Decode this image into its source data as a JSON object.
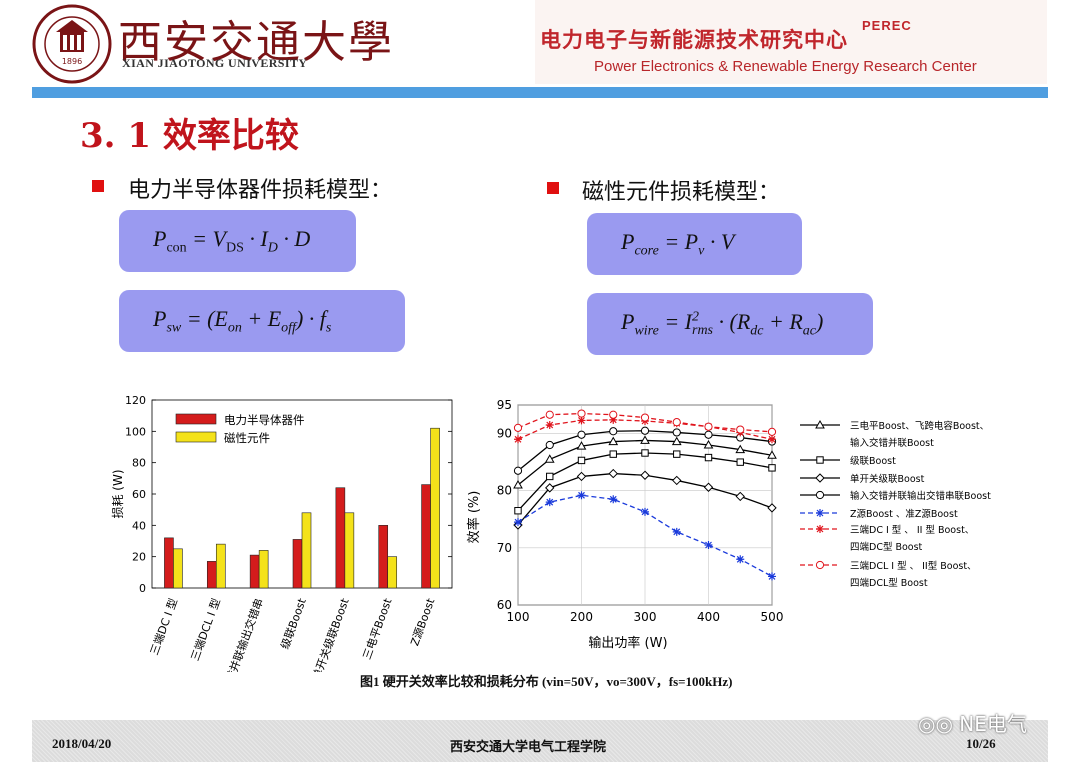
{
  "header": {
    "university_cn": "西安交通大學",
    "university_en": "XIAN JIAOTONG UNIVERSITY",
    "seal_year": "1896",
    "center_cn": "电力电子与新能源技术研究中心",
    "center_en": "Power Electronics & Renewable Energy Research Center",
    "center_logo": "PEREC"
  },
  "title": "3. 1 效率比较",
  "bullets": {
    "left": "电力半导体器件损耗模型：",
    "right": "磁性元件损耗模型："
  },
  "formulas": {
    "conduction": "P_con = V_DS · I_D · D",
    "switching": "P_sw = (E_on + E_off) · f_s",
    "core": "P_core = P_v · V",
    "winding": "P_wire = I_rms^2 · (R_dc + R_ac)"
  },
  "caption": "图1 硬开关效率比较和损耗分布 (vin=50V，vo=300V，fs=100kHz)",
  "footer": {
    "date": "2018/04/20",
    "school": "西安交通大学电气工程学院",
    "page": "10/26"
  },
  "watermark": "NE电气",
  "colors": {
    "title_red": "#c0141c",
    "formula_bg": "#9a9af0",
    "top_bar": "#4f9ee0",
    "semiconductor_bar": "#d41c1c",
    "magnetic_bar": "#f4e21a"
  },
  "chart_data": [
    {
      "type": "bar",
      "ylabel": "损耗 (W)",
      "ylim": [
        0,
        120
      ],
      "yticks": [
        0,
        20,
        40,
        60,
        80,
        100,
        120
      ],
      "categories": [
        "三端DC I 型",
        "三端DCL I 型",
        "输入交错并联输出交错串",
        "级联Boost",
        "单开关级联Boost",
        "三电平Boost",
        "Z源Boost"
      ],
      "series": [
        {
          "name": "电力半导体器件",
          "color": "#d41c1c",
          "values": [
            32,
            17,
            21,
            31,
            64,
            40,
            66
          ]
        },
        {
          "name": "磁性元件",
          "color": "#f4e21a",
          "values": [
            25,
            28,
            24,
            48,
            48,
            20,
            102
          ]
        }
      ],
      "legend": "top-left"
    },
    {
      "type": "line",
      "xlabel": "输出功率 (W)",
      "ylabel": "效率 (%)",
      "xlim": [
        100,
        500
      ],
      "ylim": [
        60,
        95
      ],
      "xticks": [
        100,
        200,
        300,
        400,
        500
      ],
      "yticks": [
        60,
        70,
        80,
        90,
        95
      ],
      "x": [
        100,
        150,
        200,
        250,
        300,
        350,
        400,
        450,
        500
      ],
      "series": [
        {
          "name": "三电平Boost、飞跨电容Boost、输入交错并联Boost",
          "legend_lines": [
            "三电平Boost、飞跨电容Boost、",
            "输入交错并联Boost"
          ],
          "color": "#000000",
          "marker": "triangle",
          "dash": "solid",
          "values": [
            81,
            85.5,
            87.8,
            88.6,
            88.8,
            88.6,
            88,
            87.2,
            86.2
          ]
        },
        {
          "name": "级联Boost",
          "legend_lines": [
            "级联Boost"
          ],
          "color": "#000000",
          "marker": "square",
          "dash": "solid",
          "values": [
            76.5,
            82.5,
            85.3,
            86.4,
            86.6,
            86.4,
            85.8,
            85,
            84
          ]
        },
        {
          "name": "单开关级联Boost",
          "legend_lines": [
            "单开关级联Boost"
          ],
          "color": "#000000",
          "marker": "diamond",
          "dash": "solid",
          "values": [
            74,
            80.5,
            82.5,
            83,
            82.7,
            81.8,
            80.6,
            79,
            77
          ]
        },
        {
          "name": "输入交错并联输出交错串联Boost",
          "legend_lines": [
            "输入交错并联输出交错串联Boost"
          ],
          "color": "#000000",
          "marker": "circle",
          "dash": "solid",
          "values": [
            83.5,
            88,
            89.8,
            90.4,
            90.5,
            90.2,
            89.8,
            89.3,
            88.6
          ]
        },
        {
          "name": "Z源Boost、准Z源Boost",
          "legend_lines": [
            "Z源Boost 、准Z源Boost"
          ],
          "color": "#1a3adb",
          "marker": "star",
          "dash": "dash",
          "values": [
            74.5,
            78,
            79.2,
            78.5,
            76.3,
            72.8,
            70.5,
            68,
            65
          ]
        },
        {
          "name": "三端DC I型、II型Boost、四端DC型Boost",
          "legend_lines": [
            "三端DC I 型 、 II 型 Boost、",
            "四端DC型 Boost"
          ],
          "color": "#e0141c",
          "marker": "star",
          "dash": "dash",
          "values": [
            89,
            91.5,
            92.3,
            92.4,
            92.2,
            91.8,
            91.2,
            90.2,
            89
          ]
        },
        {
          "name": "三端DCL I型、II型Boost、四端DCL型Boost",
          "legend_lines": [
            "三端DCL I 型 、 II型 Boost、",
            "四端DCL型 Boost"
          ],
          "color": "#e0141c",
          "marker": "circle",
          "dash": "dash",
          "values": [
            91,
            93.3,
            93.5,
            93.3,
            92.8,
            92,
            91.2,
            90.7,
            90.3
          ]
        }
      ],
      "legend": "right"
    }
  ]
}
